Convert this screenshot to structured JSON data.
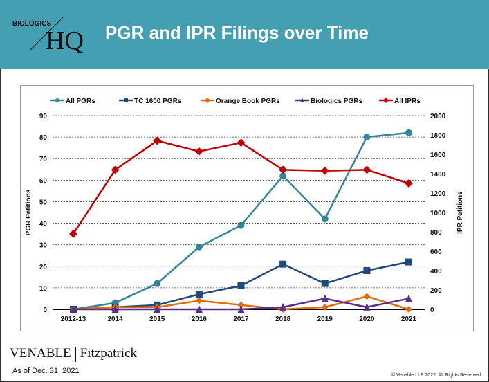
{
  "header": {
    "logo_small": "BIOLOGICS",
    "logo_large": "HQ",
    "title": "PGR and IPR Filings over Time",
    "color": "#449fb3"
  },
  "footer": {
    "brand_left": "VENABLE",
    "brand_right": "Fitzpatrick",
    "as_of": "As of Dec. 31, 2021",
    "copyright": "© Venable LLP 2022. All Rights Reserved."
  },
  "chart_data": {
    "type": "line",
    "categories": [
      "2012-13",
      "2014",
      "2015",
      "2016",
      "2017",
      "2018",
      "2019",
      "2020",
      "2021"
    ],
    "ylabel": "PGR Petitions",
    "y2label": "IPR Petitions",
    "ylim": [
      0,
      90
    ],
    "y_ticks": [
      0,
      10,
      20,
      30,
      40,
      50,
      60,
      70,
      80,
      90
    ],
    "y2lim": [
      0,
      2000
    ],
    "y2_ticks": [
      0,
      200,
      400,
      600,
      800,
      1000,
      1200,
      1400,
      1600,
      1800,
      2000
    ],
    "grid": true,
    "legend": "top",
    "series": [
      {
        "name": "All PGRs",
        "axis": "left",
        "marker": "circle",
        "color": "#31859c",
        "values": [
          0,
          3,
          12,
          29,
          39,
          62,
          42,
          80,
          82
        ]
      },
      {
        "name": "TC 1600 PGRs",
        "axis": "left",
        "marker": "square",
        "color": "#1f497d",
        "values": [
          0,
          1,
          2,
          7,
          11,
          21,
          12,
          18,
          22
        ]
      },
      {
        "name": "Orange Book PGRs",
        "axis": "left",
        "marker": "diamond",
        "color": "#e46c0a",
        "values": [
          0,
          1,
          1,
          4,
          2,
          0,
          1,
          6,
          0
        ]
      },
      {
        "name": "Biologics PGRs",
        "axis": "left",
        "marker": "triangle",
        "color": "#5b2c8f",
        "values": [
          0,
          0,
          0,
          0,
          0,
          1,
          5,
          1,
          5
        ]
      },
      {
        "name": "All IPRs",
        "axis": "right",
        "marker": "diamond",
        "color": "#c00000",
        "values": [
          780,
          1440,
          1740,
          1630,
          1720,
          1440,
          1430,
          1440,
          1300
        ]
      }
    ]
  }
}
